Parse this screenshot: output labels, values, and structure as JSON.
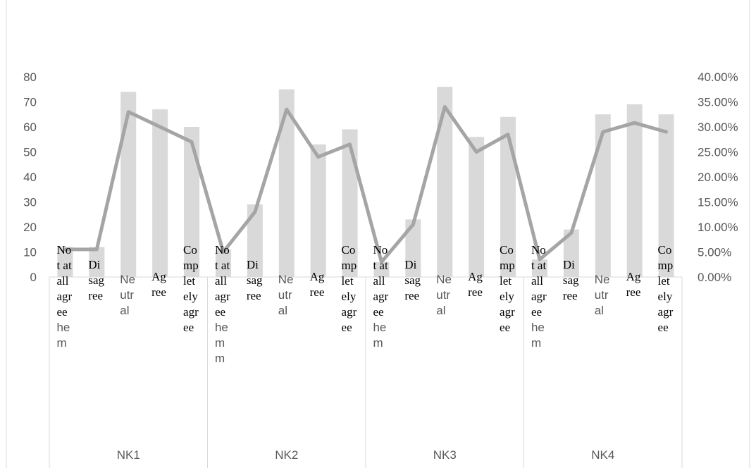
{
  "title_fragment": "",
  "colors": {
    "bar": "#d9d9d9",
    "line": "#a5a5a5",
    "axis": "#d9d9d9",
    "text": "#595959"
  },
  "chart_data": {
    "type": "bar",
    "combo": "bar+line (secondary axis)",
    "groups": [
      "NK1",
      "NK2",
      "NK3",
      "NK4"
    ],
    "categories": [
      "Not at all agree hem",
      "Disagree",
      "Neutral",
      "Agree",
      "Completely agree"
    ],
    "category_label_lines": [
      [
        "No",
        "t at",
        "all",
        "agr",
        "ee",
        "he",
        "m"
      ],
      [
        "Di",
        "sag",
        "ree"
      ],
      [
        "Ne",
        "utr",
        "al"
      ],
      [
        "Ag",
        "ree"
      ],
      [
        "Co",
        "mp",
        "let",
        "ely",
        "agr",
        "ee"
      ]
    ],
    "category_label_lines_nk2_first": [
      "No",
      "t at",
      "all",
      "agr",
      "ee",
      "he",
      "m",
      "m"
    ],
    "series": [
      {
        "kind": "bar",
        "axis": "left",
        "values": [
          [
            12,
            12,
            74,
            67,
            60
          ],
          [
            11,
            29,
            75,
            53,
            59
          ],
          [
            6,
            23,
            76,
            56,
            64
          ],
          [
            7,
            19,
            65,
            69,
            65
          ]
        ]
      },
      {
        "kind": "line",
        "axis": "right",
        "values": [
          [
            0.055,
            0.055,
            0.33,
            0.3,
            0.27
          ],
          [
            0.05,
            0.13,
            0.335,
            0.24,
            0.265
          ],
          [
            0.03,
            0.105,
            0.34,
            0.25,
            0.285
          ],
          [
            0.035,
            0.088,
            0.29,
            0.308,
            0.29
          ]
        ]
      }
    ],
    "y_left": {
      "min": 0,
      "max": 80,
      "ticks": [
        "0",
        "10",
        "20",
        "30",
        "40",
        "50",
        "60",
        "70",
        "80"
      ]
    },
    "y_right": {
      "min": 0,
      "max": 0.4,
      "ticks": [
        "0.00%",
        "5.00%",
        "10.00%",
        "15.00%",
        "20.00%",
        "25.00%",
        "30.00%",
        "35.00%",
        "40.00%"
      ]
    },
    "grid": false,
    "legend": "none"
  }
}
